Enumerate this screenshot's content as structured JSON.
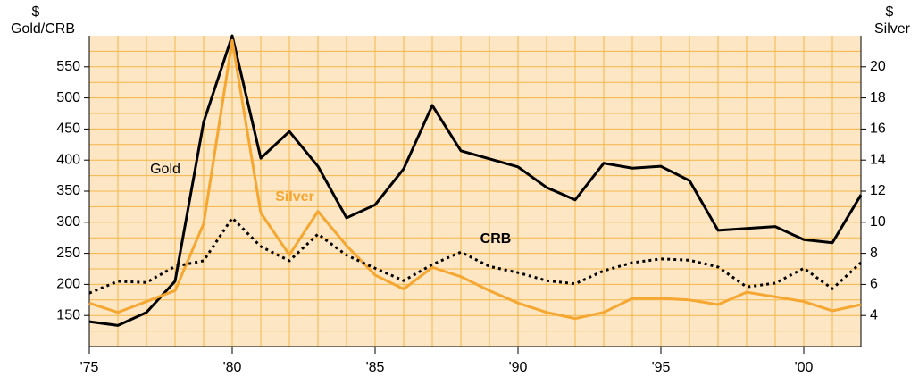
{
  "chart_data": {
    "type": "line",
    "y_label": [
      "$",
      "Gold/CRB"
    ],
    "y2_label": [
      "$",
      "Silver"
    ],
    "x": [
      1975,
      1976,
      1977,
      1978,
      1979,
      1980,
      1981,
      1982,
      1983,
      1984,
      1985,
      1986,
      1987,
      1988,
      1989,
      1990,
      1991,
      1992,
      1993,
      1994,
      1995,
      1996,
      1997,
      1998,
      1999,
      2000,
      2001,
      2002
    ],
    "xlim": [
      1975,
      2002
    ],
    "xticks": [
      {
        "value": 1975,
        "label": "'75"
      },
      {
        "value": 1980,
        "label": "'80"
      },
      {
        "value": 1985,
        "label": "'85"
      },
      {
        "value": 1990,
        "label": "'90"
      },
      {
        "value": 1995,
        "label": "'95"
      },
      {
        "value": 2000,
        "label": "'00"
      }
    ],
    "ylim": [
      100,
      600
    ],
    "yticks": [
      150,
      200,
      250,
      300,
      350,
      400,
      450,
      500,
      550
    ],
    "minor_yticks": [
      125,
      175,
      225,
      275,
      325,
      375,
      425,
      475,
      525,
      575
    ],
    "y2lim": [
      2,
      22
    ],
    "y2ticks": [
      4,
      6,
      8,
      10,
      12,
      14,
      16,
      18,
      20
    ],
    "grid": true,
    "series": [
      {
        "name": "Gold",
        "color": "#000000",
        "dash": false,
        "values": [
          140,
          134,
          155,
          205,
          461,
          600,
          403,
          446,
          390,
          307,
          328,
          386,
          488,
          415,
          402,
          389,
          356,
          336,
          395,
          387,
          390,
          367,
          287,
          290,
          293,
          272,
          267,
          344
        ]
      },
      {
        "name": "Silver",
        "color": "#f5a732",
        "dash": false,
        "axis": "y2",
        "values": [
          4.8,
          4.2,
          4.9,
          5.6,
          9.9,
          21.7,
          10.6,
          7.9,
          10.7,
          8.5,
          6.6,
          5.7,
          7.1,
          6.5,
          5.6,
          4.8,
          4.2,
          3.8,
          4.2,
          5.1,
          5.1,
          5.0,
          4.7,
          5.5,
          5.2,
          4.9,
          4.3,
          4.7
        ]
      },
      {
        "name": "CRB",
        "color": "#000000",
        "dash": true,
        "values": [
          186,
          205,
          203,
          229,
          238,
          307,
          261,
          238,
          281,
          247,
          226,
          206,
          232,
          252,
          229,
          219,
          206,
          201,
          222,
          235,
          241,
          239,
          228,
          196,
          202,
          226,
          193,
          235
        ]
      }
    ]
  }
}
